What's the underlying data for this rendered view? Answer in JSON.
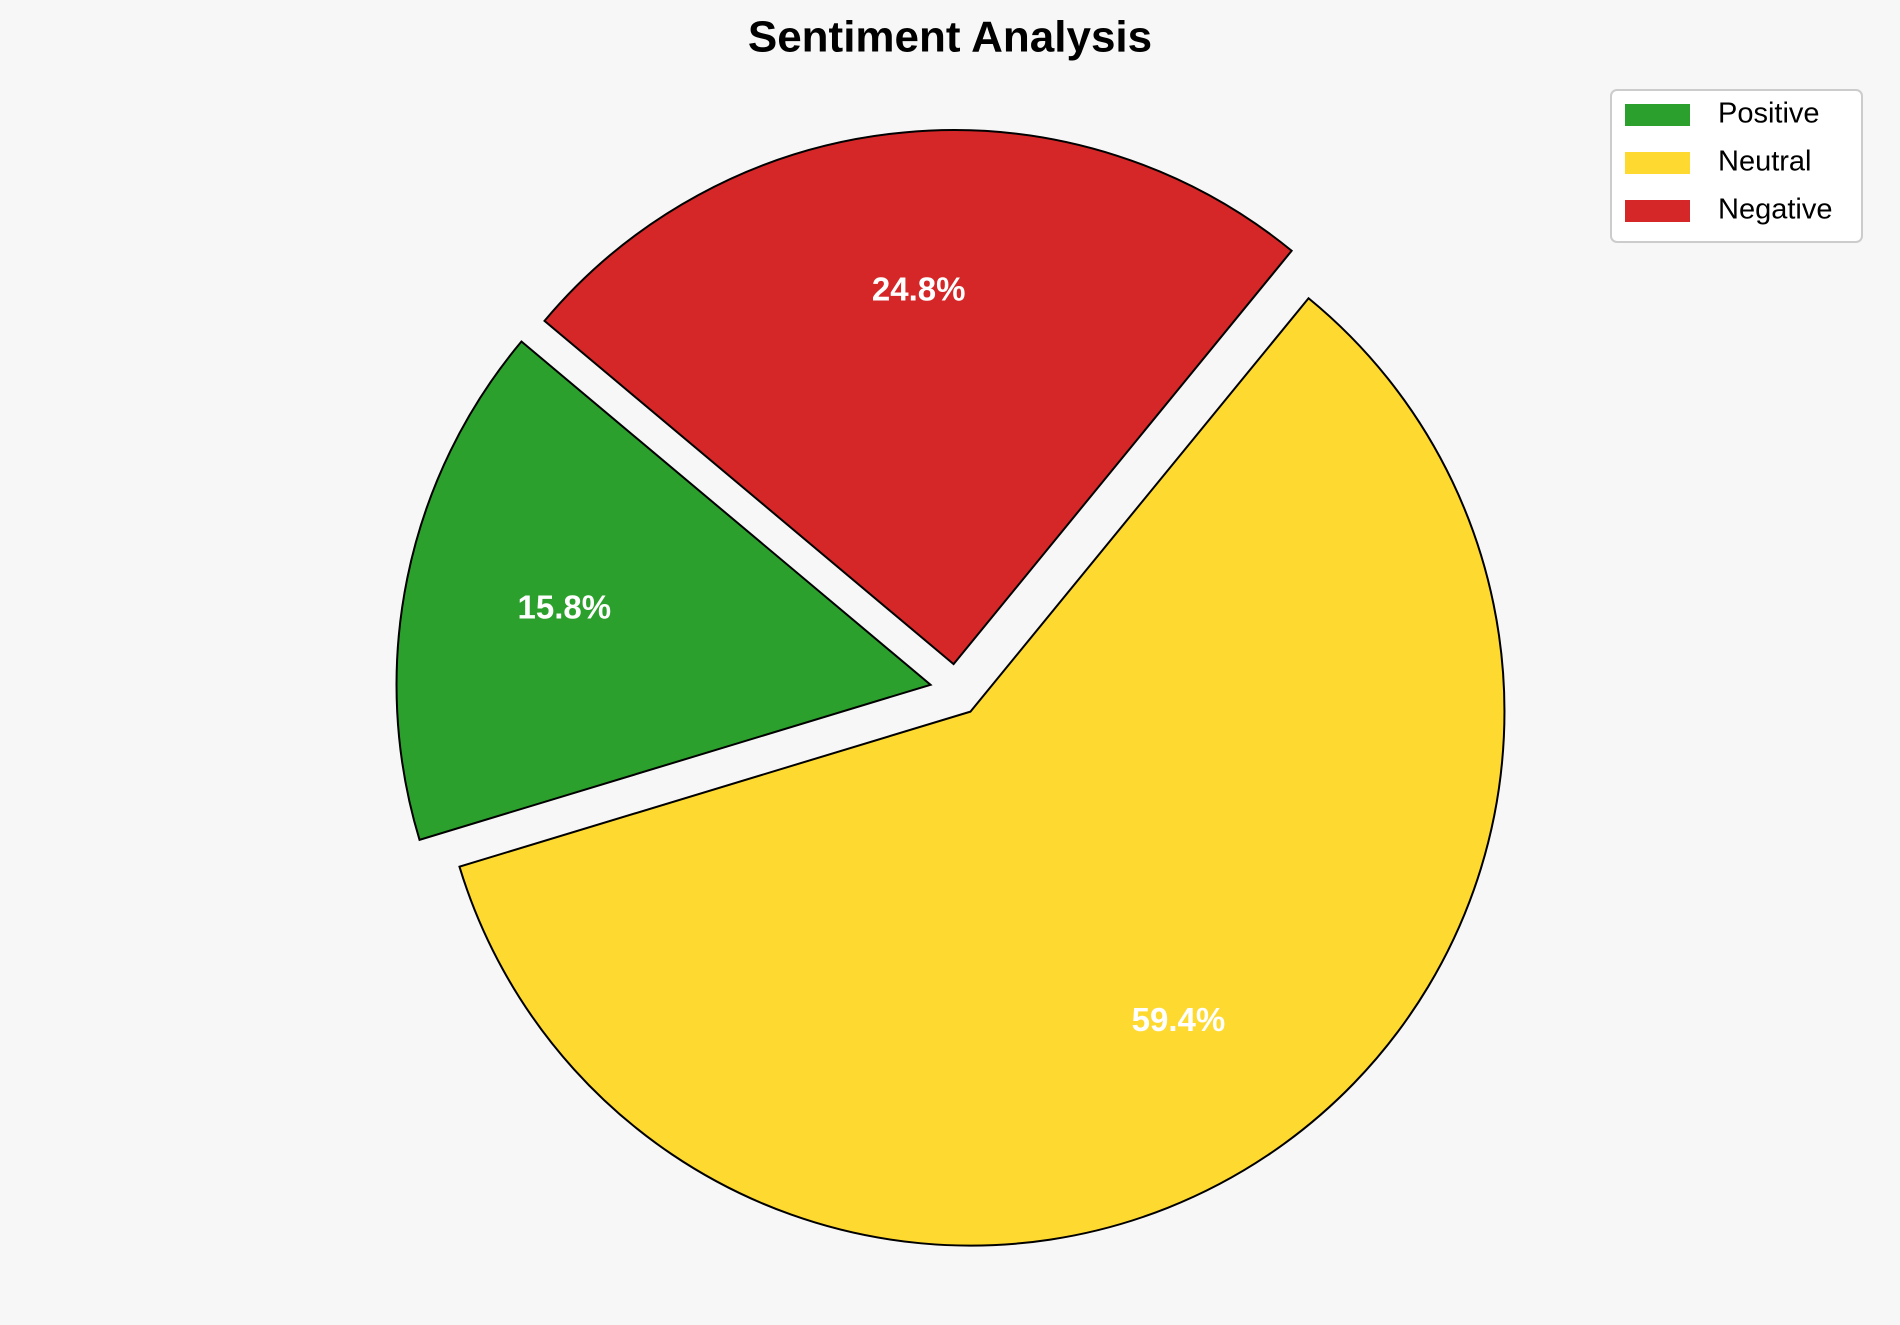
{
  "chart_data": {
    "type": "pie",
    "title": "Sentiment Analysis",
    "categories": [
      "Positive",
      "Neutral",
      "Negative"
    ],
    "values": [
      15.8,
      59.4,
      24.8
    ],
    "value_labels": [
      "15.8%",
      "59.4%",
      "24.8%"
    ],
    "colors": [
      "#2ca02c",
      "#fed930",
      "#d62728"
    ],
    "legend": "upper right"
  }
}
